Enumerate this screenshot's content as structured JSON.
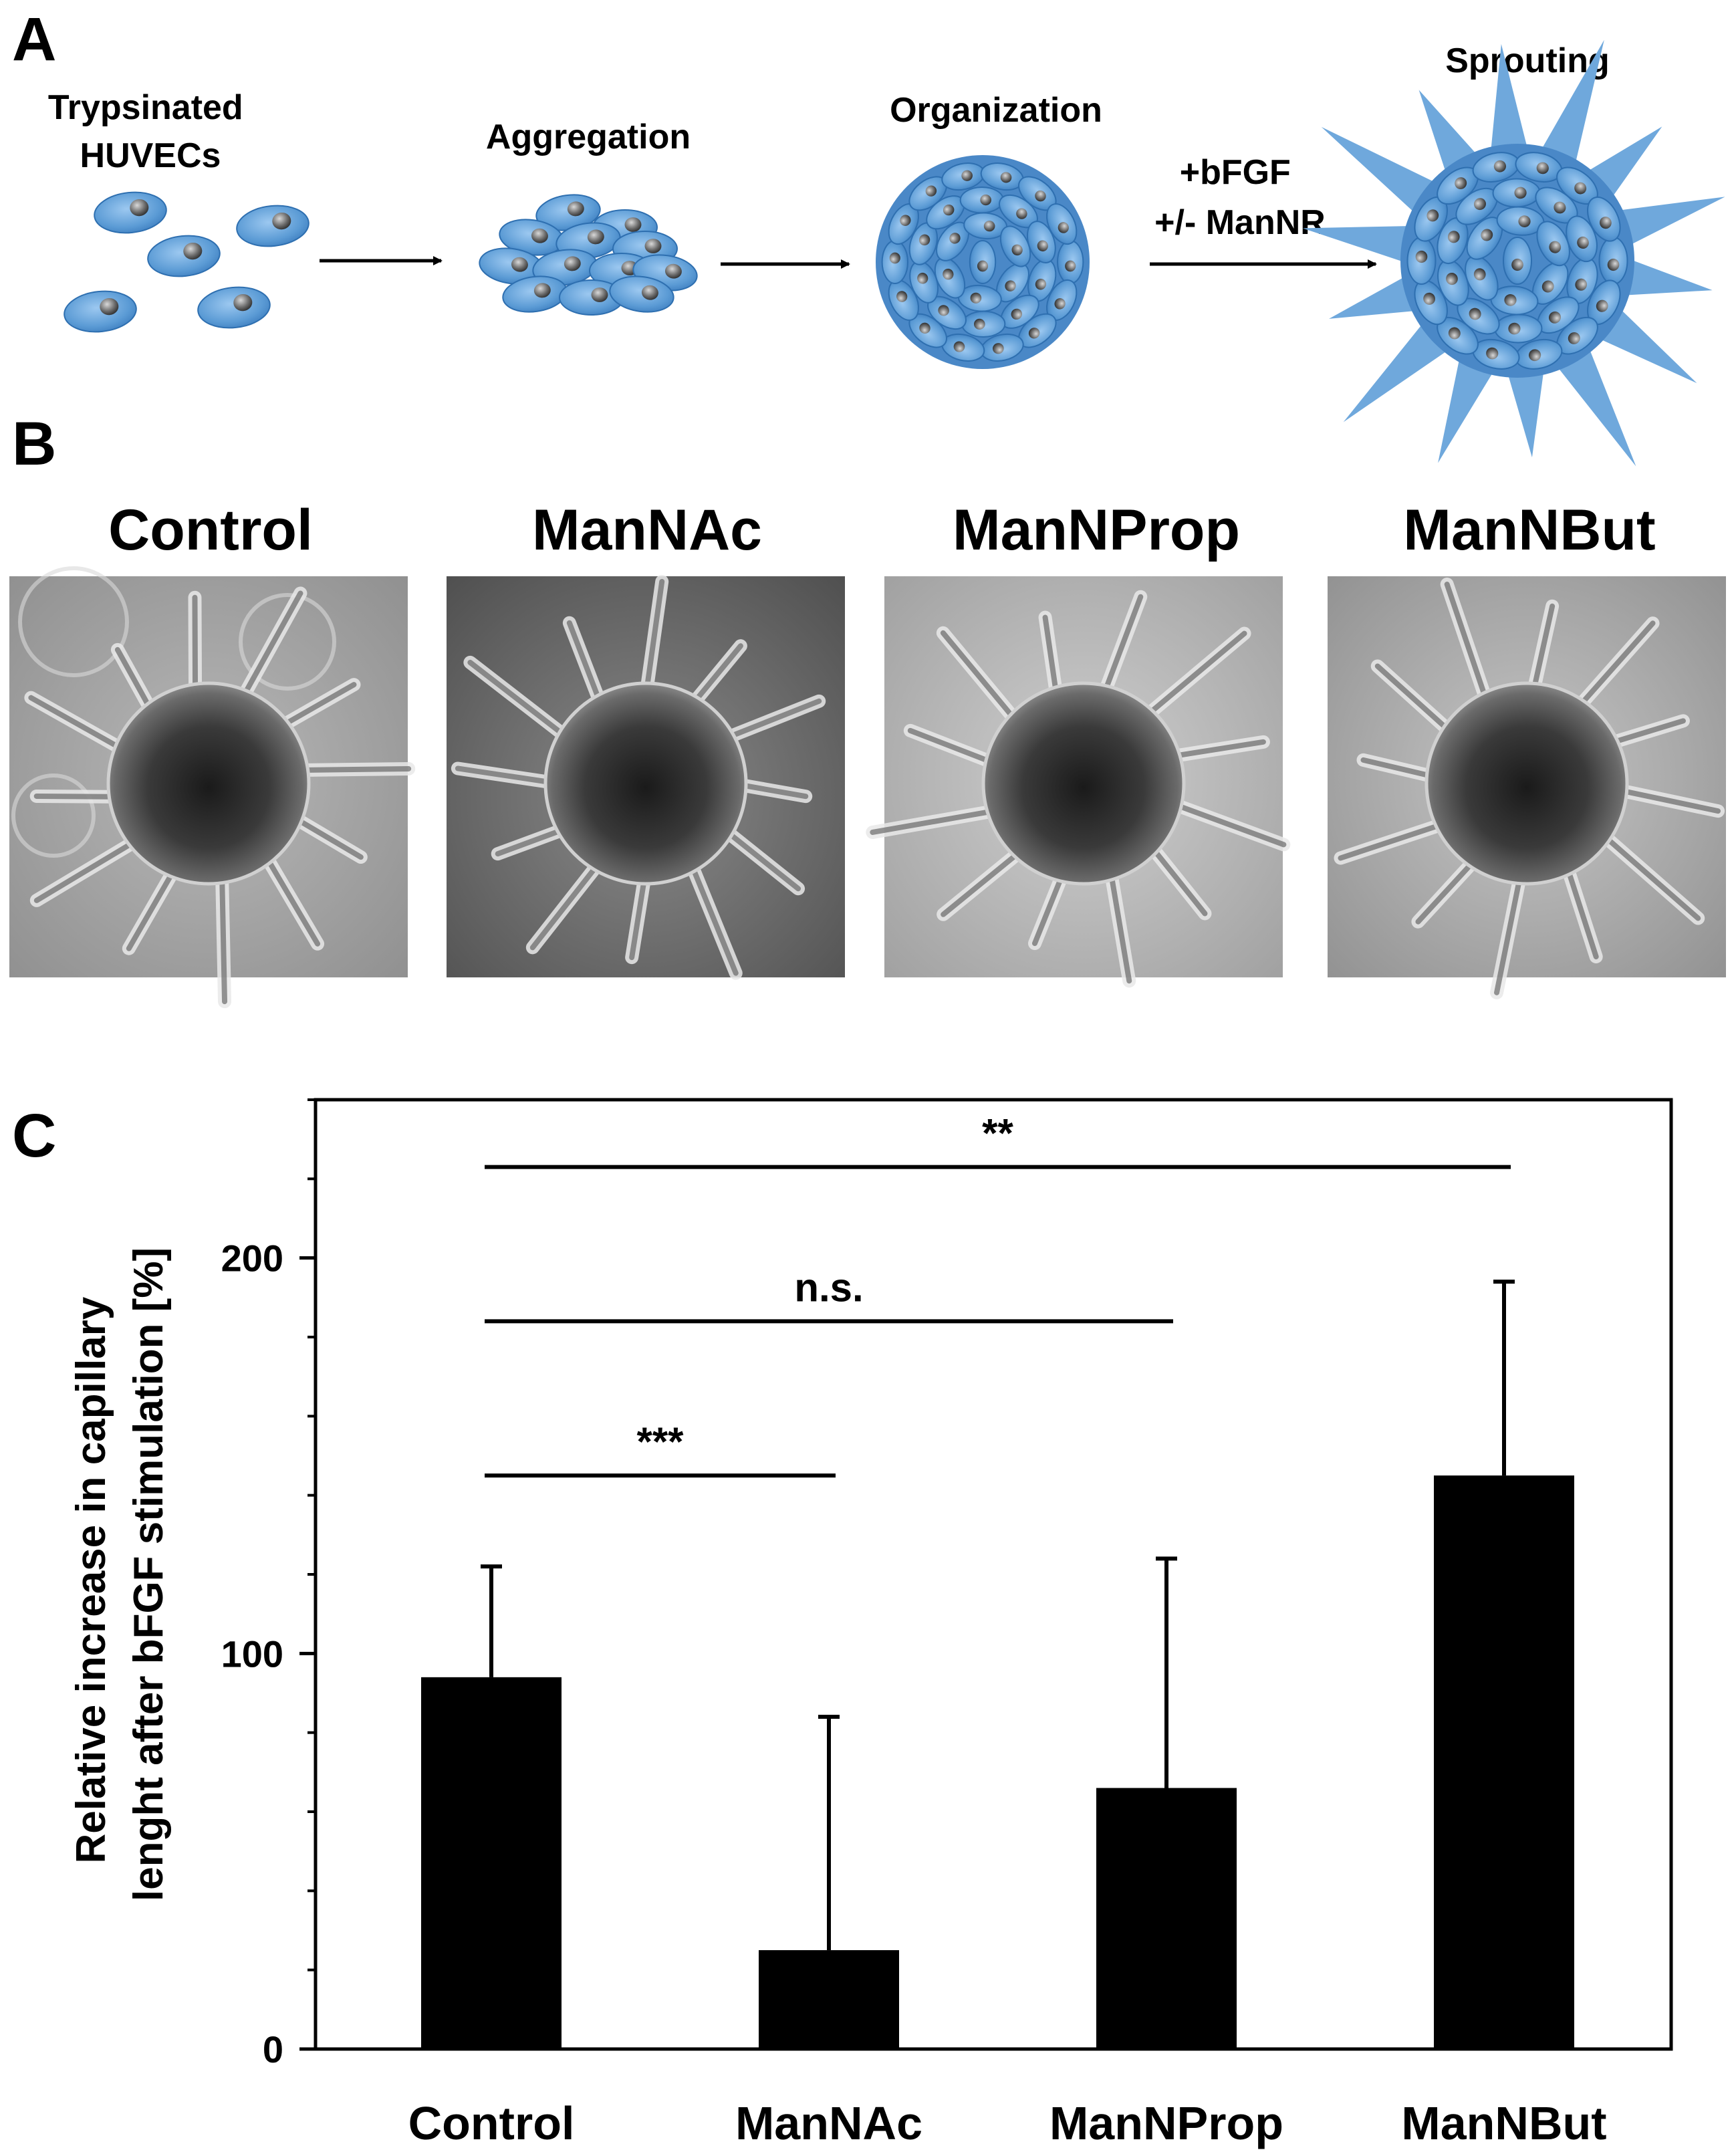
{
  "panels": {
    "a": {
      "letter": "A"
    },
    "b": {
      "letter": "B"
    },
    "c": {
      "letter": "C"
    }
  },
  "schematic": {
    "steps": [
      {
        "label_lines": [
          "Trypsinated",
          "HUVECs"
        ]
      },
      {
        "label_lines": [
          "Aggregation"
        ]
      },
      {
        "label_lines": [
          "Organization"
        ]
      },
      {
        "label_lines": [
          "Sprouting"
        ]
      }
    ],
    "treatment_lines": [
      "+bFGF",
      "+/- ManNR"
    ]
  },
  "micrographs": [
    {
      "title": "Control"
    },
    {
      "title": "ManNAc"
    },
    {
      "title": "ManNProp"
    },
    {
      "title": "ManNBut"
    }
  ],
  "colors": {
    "cell_fill": "#5b9bd5",
    "cell_edge": "#2e6fb0",
    "bar_fill": "#000000"
  },
  "chart_data": {
    "type": "bar",
    "categories": [
      "Control",
      "ManNAc",
      "ManNProp",
      "ManNBut"
    ],
    "values": [
      94,
      25,
      66,
      145
    ],
    "error_plus": [
      28,
      59,
      58,
      49
    ],
    "ylabel_lines": [
      "Relative increase in capillary",
      "lenght after bFGF stimulation [%]"
    ],
    "xlabel": "",
    "ylim": [
      0,
      240
    ],
    "yticks": [
      0,
      100,
      200
    ],
    "minor_tick_step": 20,
    "grid": false,
    "significance": [
      {
        "from": "Control",
        "to": "ManNAc",
        "label": "***",
        "y": 145
      },
      {
        "from": "Control",
        "to": "ManNProp",
        "label": "n.s.",
        "y": 184
      },
      {
        "from": "Control",
        "to": "ManNBut",
        "label": "**",
        "y": 223
      }
    ]
  }
}
